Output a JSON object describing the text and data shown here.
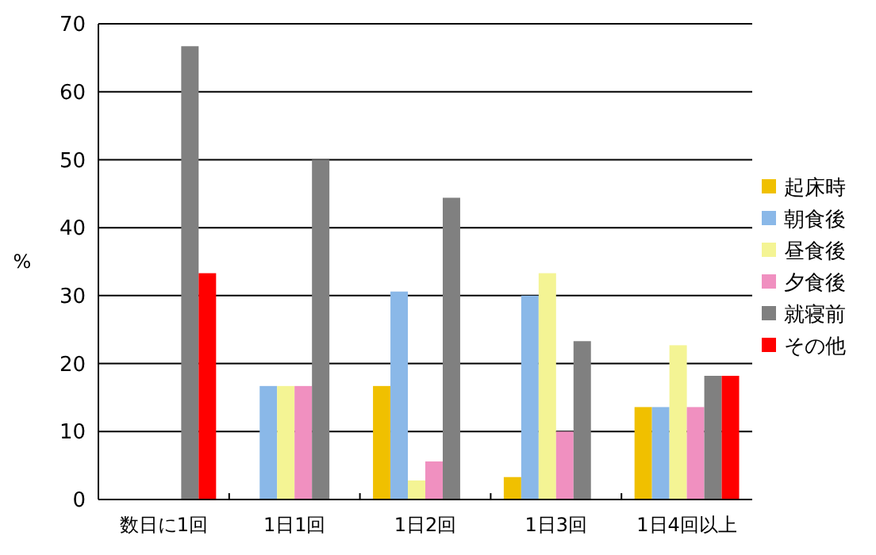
{
  "chart_data": {
    "type": "bar",
    "ylabel": "%",
    "categories": [
      "数日に1回",
      "1日1回",
      "1日2回",
      "1日3回",
      "1日4回以上"
    ],
    "series": [
      {
        "name": "起床時",
        "color": "#f0c000",
        "values": [
          0,
          0,
          16.7,
          3.3,
          13.6
        ]
      },
      {
        "name": "朝食後",
        "color": "#8ab8e8",
        "values": [
          0,
          16.7,
          30.6,
          30,
          13.6
        ]
      },
      {
        "name": "昼食後",
        "color": "#f4f494",
        "values": [
          0,
          16.7,
          2.8,
          33.3,
          22.7
        ]
      },
      {
        "name": "夕食後",
        "color": "#f090c0",
        "values": [
          0,
          16.7,
          5.6,
          10,
          13.6
        ]
      },
      {
        "name": "就寝前",
        "color": "#808080",
        "values": [
          66.7,
          50,
          44.4,
          23.3,
          18.2
        ]
      },
      {
        "name": "その他",
        "color": "#ff0000",
        "values": [
          33.3,
          0,
          0,
          0,
          18.2
        ]
      }
    ],
    "ylim": [
      0,
      70
    ],
    "yticks": [
      0,
      10,
      20,
      30,
      40,
      50,
      60,
      70
    ],
    "grid": "y",
    "legend": "right"
  }
}
